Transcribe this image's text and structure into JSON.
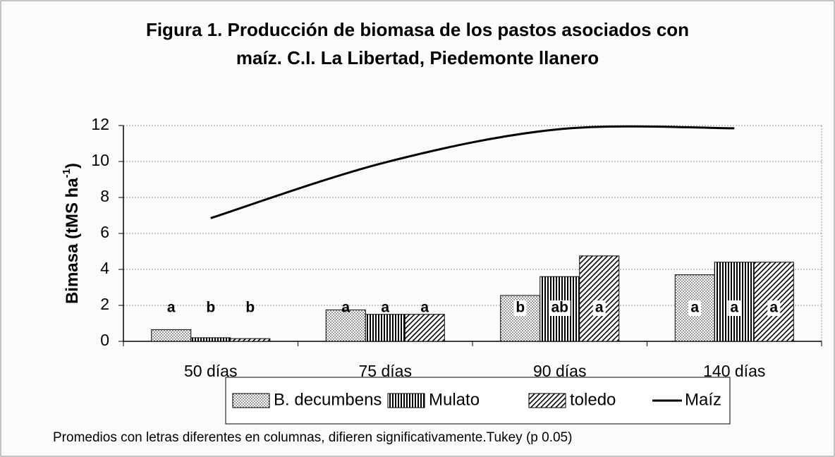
{
  "chart_data": {
    "type": "bar_line",
    "title": [
      "Figura 1.  Producción de biomasa de los pastos asociados con",
      "maíz. C.I. La Libertad, Piedemonte llanero"
    ],
    "ylabel": {
      "text": "Bimasa (tMS ha",
      "sup": "-1",
      "end": ")"
    },
    "categories": [
      "50 días",
      "75 días",
      "90 días",
      "140 días"
    ],
    "series": [
      {
        "name": "B. decumbens",
        "kind": "bar",
        "pattern": "dots",
        "color": "#000000",
        "values": [
          0.65,
          1.75,
          2.55,
          3.7
        ],
        "labels": [
          "a",
          "a",
          "b",
          "a"
        ]
      },
      {
        "name": "Mulato",
        "kind": "bar",
        "pattern": "vstripes",
        "color": "#000000",
        "values": [
          0.2,
          1.5,
          3.6,
          4.4
        ],
        "labels": [
          "b",
          "a",
          "ab",
          "a"
        ]
      },
      {
        "name": "toledo",
        "kind": "bar",
        "pattern": "diagonal",
        "color": "#000000",
        "values": [
          0.15,
          1.5,
          4.75,
          4.4
        ],
        "labels": [
          "b",
          "a",
          "a",
          "a"
        ]
      },
      {
        "name": "Maíz",
        "kind": "line",
        "color": "#000000",
        "values": [
          6.85,
          9.95,
          11.8,
          11.85
        ]
      }
    ],
    "ylim": [
      0,
      12
    ],
    "yticks": [
      0,
      2,
      4,
      6,
      8,
      10,
      12
    ],
    "grid": true,
    "legend": "bottom",
    "footnote": "Promedios con letras diferentes en columnas,  difieren significativamente.Tukey (p 0.05)"
  }
}
